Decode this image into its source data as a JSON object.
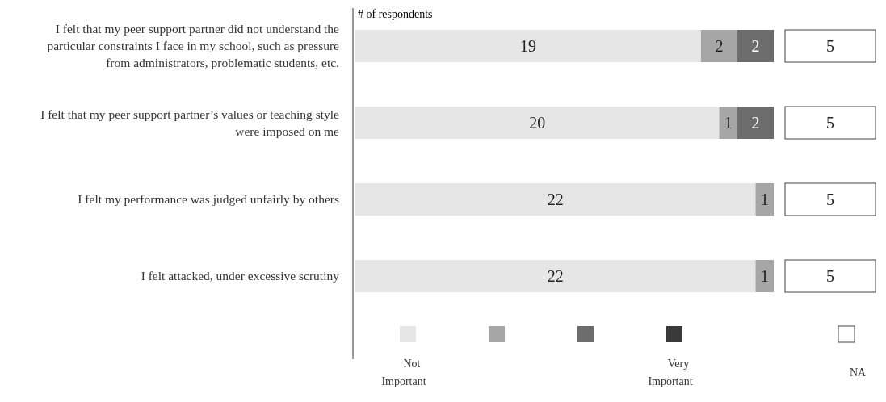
{
  "chart_data": [
    {
      "type": "bar",
      "orientation": "horizontal",
      "stacked": true,
      "xlabel": "# of respondents",
      "categories": [
        "I felt that my peer support partner did not understand the particular constraints I face in my school, such as pressure from administrators, problematic students, etc.",
        "I felt that my peer support partner’s values or teaching style were imposed on me",
        "I felt my performance was judged unfairly by others",
        "I felt attacked, under excessive scrutiny"
      ],
      "series": [
        {
          "name": "Not Important",
          "color": "#e6e6e6",
          "values": [
            19,
            20,
            22,
            22
          ]
        },
        {
          "color": "#a6a6a6",
          "values": [
            2,
            1,
            1,
            1
          ]
        },
        {
          "color": "#6d6d6d",
          "values": [
            2,
            2,
            null,
            null
          ]
        },
        {
          "name": "Very Important",
          "color": "#3a3a3a",
          "values": [
            null,
            null,
            null,
            null
          ]
        }
      ],
      "data_labels": true,
      "legend": "bottom"
    },
    {
      "type": "bar",
      "orientation": "horizontal",
      "categories": [
        null,
        null,
        null,
        null
      ],
      "series": [
        {
          "name": "NA",
          "color": "#ffffff",
          "values": [
            5,
            5,
            5,
            5
          ]
        }
      ],
      "data_labels": true,
      "legend": "bottom"
    }
  ]
}
